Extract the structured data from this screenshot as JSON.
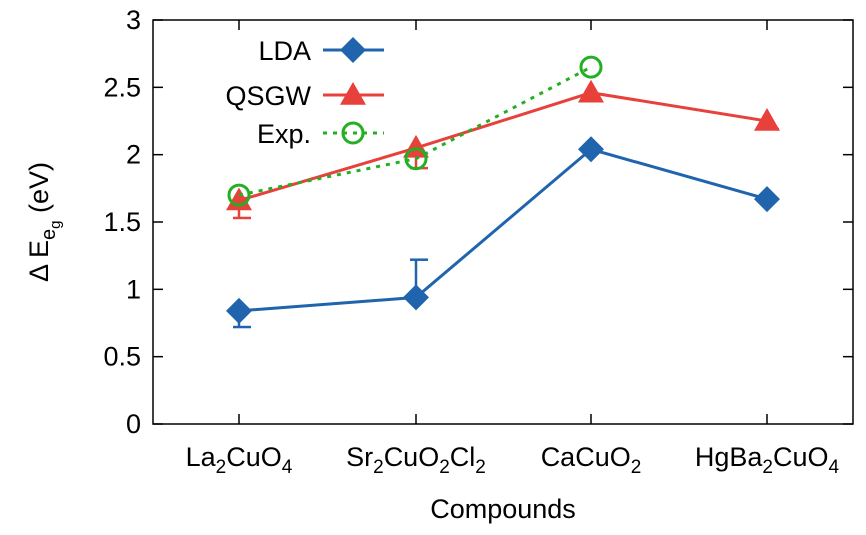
{
  "chart_data": {
    "type": "line",
    "xlabel": "Compounds",
    "ylabel": {
      "prefix": "Δ E",
      "sub": "e",
      "subsub": "g",
      "unit": " (eV)"
    },
    "ylim": [
      0,
      3
    ],
    "yticks": [
      "0",
      "0.5",
      "1",
      "1.5",
      "2",
      "2.5",
      "3"
    ],
    "categories": [
      {
        "parts": [
          {
            "t": "La"
          },
          {
            "t": "2",
            "sub": true
          },
          {
            "t": "CuO"
          },
          {
            "t": "4",
            "sub": true
          }
        ]
      },
      {
        "parts": [
          {
            "t": "Sr"
          },
          {
            "t": "2",
            "sub": true
          },
          {
            "t": "CuO"
          },
          {
            "t": "2",
            "sub": true
          },
          {
            "t": "Cl"
          },
          {
            "t": "2",
            "sub": true
          }
        ]
      },
      {
        "parts": [
          {
            "t": "CaCuO"
          },
          {
            "t": "2",
            "sub": true
          }
        ]
      },
      {
        "parts": [
          {
            "t": "HgBa"
          },
          {
            "t": "2",
            "sub": true
          },
          {
            "t": "CuO"
          },
          {
            "t": "4",
            "sub": true
          }
        ]
      }
    ],
    "grid": false,
    "legend_position": "top-left",
    "series": [
      {
        "name": "LDA",
        "color": "#1f64ad",
        "marker": "diamond",
        "line": "solid",
        "values": [
          0.84,
          0.94,
          2.04,
          1.67
        ],
        "err_low": [
          0.72,
          null,
          null,
          null
        ],
        "err_high": [
          null,
          1.22,
          null,
          null
        ]
      },
      {
        "name": "QSGW",
        "color": "#e8403b",
        "marker": "triangle",
        "line": "solid",
        "values": [
          1.66,
          2.05,
          2.46,
          2.25
        ],
        "err_low": [
          1.53,
          1.9,
          null,
          2.19
        ],
        "err_high": [
          null,
          null,
          null,
          null
        ]
      },
      {
        "name": "Exp.",
        "color": "#22b022",
        "marker": "circle-open",
        "line": "dotted",
        "values": [
          1.7,
          1.97,
          2.65,
          null
        ],
        "err_low": [
          null,
          null,
          null,
          null
        ],
        "err_high": [
          null,
          null,
          null,
          null
        ]
      }
    ]
  }
}
